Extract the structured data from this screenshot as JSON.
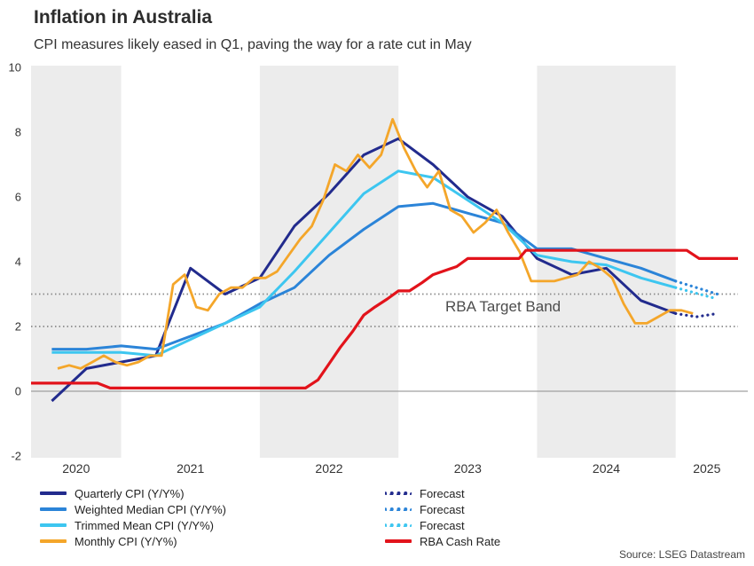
{
  "header": {
    "title": "Inflation in Australia",
    "subtitle": "CPI measures likely eased in Q1, paving the way for a rate cut in May"
  },
  "annotation": {
    "target_band_label": "RBA Target Band"
  },
  "source": "Source: LSEG Datastream",
  "colors": {
    "quarterly": "#222b8d",
    "weighted": "#2b84d8",
    "trimmed": "#3dc6f0",
    "monthly": "#f4a62a",
    "cash_rate": "#e2131b",
    "band_fill": "#ececec",
    "target_line": "#8a8a8a",
    "zero_line": "#a0a0a0"
  },
  "legend": {
    "left": [
      {
        "label": "Quarterly CPI (Y/Y%)",
        "color_key": "quarterly",
        "dashed": false
      },
      {
        "label": "Weighted Median CPI (Y/Y%)",
        "color_key": "weighted",
        "dashed": false
      },
      {
        "label": "Trimmed Mean CPI (Y/Y%)",
        "color_key": "trimmed",
        "dashed": false
      },
      {
        "label": "Monthly CPI (Y/Y%)",
        "color_key": "monthly",
        "dashed": false
      }
    ],
    "right": [
      {
        "label": "Forecast",
        "color_key": "quarterly",
        "dashed": true
      },
      {
        "label": "Forecast",
        "color_key": "weighted",
        "dashed": true
      },
      {
        "label": "Forecast",
        "color_key": "trimmed",
        "dashed": true
      },
      {
        "label": "RBA Cash Rate",
        "color_key": "cash_rate",
        "dashed": false
      }
    ]
  },
  "chart_data": {
    "type": "line",
    "title": "Inflation in Australia",
    "xlabel": "",
    "ylabel": "",
    "x_range": [
      2020.35,
      2025.45
    ],
    "y_range": [
      -2,
      10
    ],
    "y_ticks": [
      -2,
      0,
      2,
      4,
      6,
      8,
      10
    ],
    "x_tick_years": [
      2020,
      2021,
      2022,
      2023,
      2024,
      2025
    ],
    "target_band": [
      2,
      3
    ],
    "grid": "zero-line-only",
    "legend_position": "bottom",
    "series": [
      {
        "id": "quarterly-cpi",
        "name": "Quarterly CPI (Y/Y%)",
        "color_key": "quarterly",
        "dashed": false,
        "width": 3,
        "x": [
          2020.5,
          2020.75,
          2021,
          2021.25,
          2021.5,
          2021.75,
          2022,
          2022.25,
          2022.5,
          2022.75,
          2023,
          2023.25,
          2023.5,
          2023.75,
          2024,
          2024.25,
          2024.5,
          2024.75,
          2025
        ],
        "y": [
          -0.3,
          0.7,
          0.9,
          1.1,
          3.8,
          3.0,
          3.5,
          5.1,
          6.1,
          7.3,
          7.8,
          7.0,
          6.0,
          5.4,
          4.1,
          3.6,
          3.8,
          2.8,
          2.4
        ]
      },
      {
        "id": "weighted-median-cpi",
        "name": "Weighted Median CPI (Y/Y%)",
        "color_key": "weighted",
        "dashed": false,
        "width": 3,
        "x": [
          2020.5,
          2020.75,
          2021,
          2021.25,
          2021.5,
          2021.75,
          2022,
          2022.25,
          2022.5,
          2022.75,
          2023,
          2023.25,
          2023.5,
          2023.75,
          2024,
          2024.25,
          2024.5,
          2024.75,
          2025
        ],
        "y": [
          1.3,
          1.3,
          1.4,
          1.3,
          1.7,
          2.1,
          2.7,
          3.2,
          4.2,
          5.0,
          5.7,
          5.8,
          5.5,
          5.2,
          4.4,
          4.4,
          4.1,
          3.8,
          3.4
        ]
      },
      {
        "id": "trimmed-mean-cpi",
        "name": "Trimmed Mean CPI (Y/Y%)",
        "color_key": "trimmed",
        "dashed": false,
        "width": 3,
        "x": [
          2020.5,
          2020.75,
          2021,
          2021.25,
          2021.5,
          2021.75,
          2022,
          2022.25,
          2022.5,
          2022.75,
          2023,
          2023.25,
          2023.5,
          2023.75,
          2024,
          2024.25,
          2024.5,
          2024.75,
          2025
        ],
        "y": [
          1.2,
          1.2,
          1.2,
          1.1,
          1.6,
          2.1,
          2.6,
          3.7,
          4.9,
          6.1,
          6.8,
          6.6,
          5.9,
          5.2,
          4.2,
          4.0,
          3.9,
          3.5,
          3.2
        ]
      },
      {
        "id": "monthly-cpi",
        "name": "Monthly CPI (Y/Y%)",
        "color_key": "monthly",
        "dashed": false,
        "width": 2.8,
        "x": [
          2020.542,
          2020.625,
          2020.708,
          2020.792,
          2020.875,
          2020.958,
          2021.042,
          2021.125,
          2021.208,
          2021.292,
          2021.375,
          2021.458,
          2021.542,
          2021.625,
          2021.708,
          2021.792,
          2021.875,
          2021.958,
          2022.042,
          2022.125,
          2022.208,
          2022.292,
          2022.375,
          2022.458,
          2022.542,
          2022.625,
          2022.708,
          2022.792,
          2022.875,
          2022.958,
          2023.042,
          2023.125,
          2023.208,
          2023.292,
          2023.375,
          2023.458,
          2023.542,
          2023.625,
          2023.708,
          2023.792,
          2023.875,
          2023.958,
          2024.042,
          2024.125,
          2024.208,
          2024.292,
          2024.375,
          2024.458,
          2024.542,
          2024.625,
          2024.708,
          2024.792,
          2024.875,
          2024.958,
          2025.042,
          2025.125
        ],
        "y": [
          0.7,
          0.8,
          0.7,
          0.9,
          1.1,
          0.9,
          0.8,
          0.9,
          1.1,
          1.1,
          3.3,
          3.6,
          2.6,
          2.5,
          3.0,
          3.2,
          3.2,
          3.5,
          3.5,
          3.7,
          4.2,
          4.7,
          5.1,
          5.9,
          7.0,
          6.8,
          7.3,
          6.9,
          7.3,
          8.4,
          7.5,
          6.8,
          6.3,
          6.8,
          5.6,
          5.4,
          4.9,
          5.2,
          5.6,
          4.9,
          4.3,
          3.4,
          3.4,
          3.4,
          3.5,
          3.6,
          4.0,
          3.8,
          3.5,
          2.7,
          2.1,
          2.1,
          2.3,
          2.5,
          2.5,
          2.4
        ]
      },
      {
        "id": "quarterly-forecast",
        "name": "Forecast",
        "color_key": "quarterly",
        "dashed": true,
        "width": 3.2,
        "x": [
          2025.0,
          2025.15,
          2025.3
        ],
        "y": [
          2.4,
          2.3,
          2.4
        ]
      },
      {
        "id": "weighted-forecast",
        "name": "Forecast",
        "color_key": "weighted",
        "dashed": true,
        "width": 3.2,
        "x": [
          2025.0,
          2025.3
        ],
        "y": [
          3.4,
          3.0
        ]
      },
      {
        "id": "trimmed-forecast",
        "name": "Forecast",
        "color_key": "trimmed",
        "dashed": true,
        "width": 3.2,
        "x": [
          2025.0,
          2025.3
        ],
        "y": [
          3.2,
          2.85
        ]
      },
      {
        "id": "rba-cash-rate",
        "name": "RBA Cash Rate",
        "color_key": "cash_rate",
        "dashed": false,
        "width": 3.2,
        "x": [
          2020.35,
          2020.83,
          2020.92,
          2022.33,
          2022.42,
          2022.5,
          2022.58,
          2022.67,
          2022.75,
          2022.83,
          2022.92,
          2023.0,
          2023.08,
          2023.17,
          2023.25,
          2023.42,
          2023.5,
          2023.87,
          2023.92,
          2025.08,
          2025.17,
          2025.45
        ],
        "y": [
          0.25,
          0.25,
          0.1,
          0.1,
          0.35,
          0.85,
          1.35,
          1.85,
          2.35,
          2.6,
          2.85,
          3.1,
          3.1,
          3.35,
          3.6,
          3.85,
          4.1,
          4.1,
          4.35,
          4.35,
          4.1,
          4.1
        ]
      }
    ]
  }
}
